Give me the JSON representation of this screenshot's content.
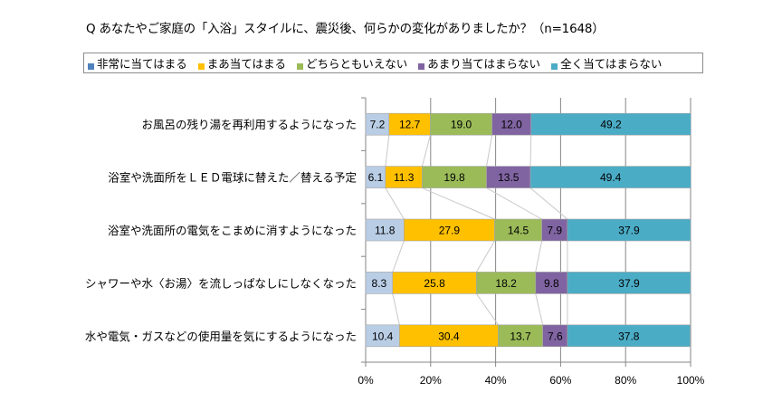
{
  "chart_data": {
    "type": "bar",
    "orientation": "horizontal",
    "stacked": "percent",
    "title": "Q あなたやご家庭の「入浴」スタイルに、震災後、何らかの変化がありましたか？（n=1648）",
    "categories": [
      "お風呂の残り湯を再利用するようになった",
      "浴室や洗面所をＬＥＤ電球に替えた／替える予定",
      "浴室や洗面所の電気をこまめに消すようになった",
      "シャワーや水〈お湯〉を流しっぱなしにしなくなった",
      "水や電気・ガスなどの使用量を気にするようになった"
    ],
    "series": [
      {
        "name": "非常に当てはまる",
        "color": "#B9CDE5",
        "legend_color": "#4F81BD",
        "values": [
          7.2,
          6.1,
          11.8,
          8.3,
          10.4
        ]
      },
      {
        "name": "まあ当てはまる",
        "color": "#FFC000",
        "values": [
          12.7,
          11.3,
          27.9,
          25.8,
          30.4
        ]
      },
      {
        "name": "どちらともいえない",
        "color": "#9BBB59",
        "values": [
          19.0,
          19.8,
          14.5,
          18.2,
          13.7
        ]
      },
      {
        "name": "あまり当てはまらない",
        "color": "#8064A2",
        "values": [
          12.0,
          13.5,
          7.9,
          9.8,
          7.6
        ]
      },
      {
        "name": "全く当てはまらない",
        "color": "#4BACC6",
        "values": [
          49.2,
          49.4,
          37.9,
          37.9,
          37.8
        ]
      }
    ],
    "value_labels": [
      [
        "7.2",
        "12.7",
        "19.0",
        "12.0",
        "49.2"
      ],
      [
        "6.1",
        "11.3",
        "19.8",
        "13.5",
        "49.4"
      ],
      [
        "11.8",
        "27.9",
        "14.5",
        "7.9",
        "37.9"
      ],
      [
        "8.3",
        "25.8",
        "18.2",
        "9.8",
        "37.9"
      ],
      [
        "10.4",
        "30.4",
        "13.7",
        "7.6",
        "37.8"
      ]
    ],
    "xlim": [
      0,
      100
    ],
    "xticks": [
      "0%",
      "20%",
      "40%",
      "60%",
      "80%",
      "100%"
    ],
    "xlabel": "",
    "ylabel": "",
    "grid": true,
    "series_lines": true,
    "legend_position": "top"
  }
}
